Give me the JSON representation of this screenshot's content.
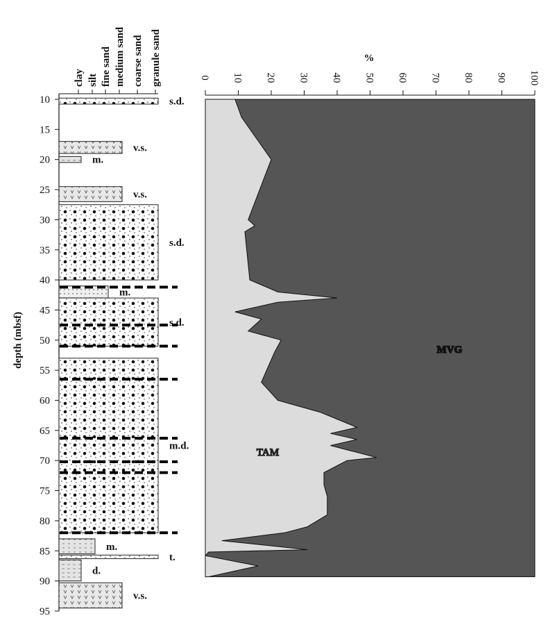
{
  "chart_data": {
    "type": "area",
    "x_label": "%",
    "y_label": "depth (mbsf)",
    "xlim": [
      0,
      100
    ],
    "xticks": [
      0,
      10,
      20,
      30,
      40,
      50,
      60,
      70,
      80,
      90,
      100
    ],
    "ylim": [
      10,
      95
    ],
    "yticks": [
      10,
      15,
      20,
      25,
      30,
      35,
      40,
      45,
      50,
      55,
      60,
      65,
      70,
      75,
      80,
      85,
      90,
      95
    ],
    "x": [
      10,
      13,
      20,
      30,
      31,
      32,
      40,
      42,
      43,
      43.7,
      45.3,
      46.5,
      48.5,
      50,
      52,
      57,
      60,
      62,
      64.5,
      65.5,
      66.5,
      67.5,
      69.5,
      70,
      72,
      74,
      76,
      79,
      81,
      82,
      83.3,
      84.8,
      85.2,
      85.8,
      87.5,
      89.3
    ],
    "series": [
      {
        "name": "TAM",
        "color": "#dcdcdc",
        "values": [
          9,
          11,
          20,
          13,
          15,
          12,
          13.5,
          22,
          40,
          22,
          9,
          17,
          13,
          23,
          21,
          17,
          22,
          35,
          46,
          38,
          46,
          38,
          52,
          43,
          36,
          36,
          37,
          37,
          31,
          24,
          5,
          31,
          1,
          0,
          16,
          1
        ]
      }
    ],
    "fill_label": "MVG",
    "fill_color": "#555555"
  },
  "log": {
    "grain_sizes": [
      "clay",
      "silt",
      "fine sand",
      "medium sand",
      "coarse sand",
      "granule sand"
    ],
    "units": [
      {
        "label": "s.d.",
        "top": 9.8,
        "bottom": 10.8,
        "grain": "granule sand"
      },
      {
        "label": "v.s.",
        "top": 17,
        "bottom": 19,
        "grain": "medium sand"
      },
      {
        "label": "m.",
        "top": 19.5,
        "bottom": 20.5,
        "grain": "clay"
      },
      {
        "label": "v.s.",
        "top": 24.5,
        "bottom": 27,
        "grain": "medium sand"
      },
      {
        "label": "s.d.",
        "top": 27.5,
        "bottom": 40,
        "grain": "granule sand"
      },
      {
        "label": "m.",
        "top": 41,
        "bottom": 43,
        "grain": "fine sand"
      },
      {
        "label": "s.d.",
        "top": 43,
        "bottom": 51,
        "grain": "granule sand"
      },
      {
        "label": "m.d.",
        "top": 53,
        "bottom": 82,
        "grain": "granule sand"
      },
      {
        "label": "m.",
        "top": 83,
        "bottom": 85.5,
        "grain": "silt"
      },
      {
        "label": "t.",
        "top": 85.7,
        "bottom": 86.3,
        "grain": "granule sand"
      },
      {
        "label": "d.",
        "top": 86.5,
        "bottom": 90,
        "grain": "clay"
      },
      {
        "label": "v.s.",
        "top": 90.3,
        "bottom": 94.5,
        "grain": "medium sand"
      }
    ],
    "contacts": [
      41.2,
      47.5,
      51,
      56.5,
      66.3,
      70.2,
      72,
      82
    ]
  }
}
